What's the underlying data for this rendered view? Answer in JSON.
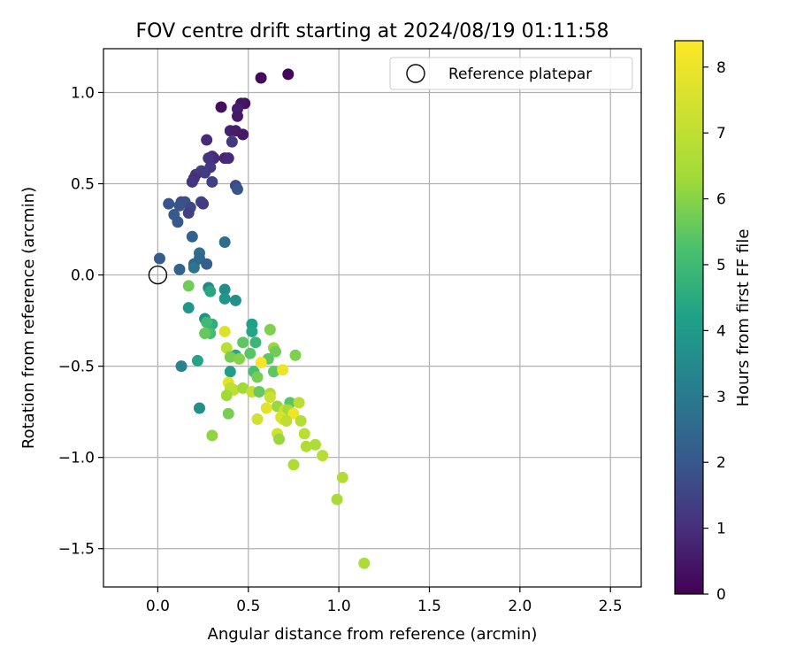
{
  "chart_data": {
    "type": "scatter",
    "title": "FOV centre drift starting at 2024/08/19 01:11:58",
    "xlabel": "Angular distance from reference (arcmin)",
    "ylabel": "Rotation from reference (arcmin)",
    "xlim": [
      -0.3,
      2.67
    ],
    "ylim": [
      -1.71,
      1.24
    ],
    "xticks": [
      0.0,
      0.5,
      1.0,
      1.5,
      2.0,
      2.5
    ],
    "xtick_labels": [
      "0.0",
      "0.5",
      "1.0",
      "1.5",
      "2.0",
      "2.5"
    ],
    "yticks": [
      -1.5,
      -1.0,
      -0.5,
      0.0,
      0.5,
      1.0
    ],
    "ytick_labels": [
      "−1.5",
      "−1.0",
      "−0.5",
      "0.0",
      "0.5",
      "1.0"
    ],
    "grid": true,
    "legend": {
      "position": "top-right",
      "entries": [
        "Reference platepar"
      ]
    },
    "colormap": "viridis",
    "colorbar": {
      "label": "Hours from first FF file",
      "range": [
        0,
        8.4
      ],
      "ticks": [
        0,
        1,
        2,
        3,
        4,
        5,
        6,
        7,
        8
      ],
      "tick_labels": [
        "0",
        "1",
        "2",
        "3",
        "4",
        "5",
        "6",
        "7",
        "8"
      ]
    },
    "reference_point": {
      "x": 0.0,
      "y": 0.0,
      "label": "Reference platepar"
    },
    "points": [
      {
        "x": 0.72,
        "y": 1.1,
        "c": 0.1
      },
      {
        "x": 0.57,
        "y": 1.08,
        "c": 0.2
      },
      {
        "x": 0.48,
        "y": 0.94,
        "c": 0.3
      },
      {
        "x": 0.46,
        "y": 0.94,
        "c": 0.4
      },
      {
        "x": 0.35,
        "y": 0.92,
        "c": 0.3
      },
      {
        "x": 0.44,
        "y": 0.91,
        "c": 0.6
      },
      {
        "x": 0.44,
        "y": 0.87,
        "c": 0.5
      },
      {
        "x": 0.4,
        "y": 0.79,
        "c": 0.7
      },
      {
        "x": 0.43,
        "y": 0.79,
        "c": 0.6
      },
      {
        "x": 0.47,
        "y": 0.77,
        "c": 0.5
      },
      {
        "x": 0.27,
        "y": 0.74,
        "c": 0.9
      },
      {
        "x": 0.41,
        "y": 0.73,
        "c": 1.2
      },
      {
        "x": 0.3,
        "y": 0.65,
        "c": 1.0
      },
      {
        "x": 0.31,
        "y": 0.64,
        "c": 0.9
      },
      {
        "x": 0.28,
        "y": 0.64,
        "c": 1.1
      },
      {
        "x": 0.37,
        "y": 0.64,
        "c": 0.8
      },
      {
        "x": 0.39,
        "y": 0.64,
        "c": 0.9
      },
      {
        "x": 0.29,
        "y": 0.59,
        "c": 1.2
      },
      {
        "x": 0.24,
        "y": 0.57,
        "c": 1.4
      },
      {
        "x": 0.26,
        "y": 0.56,
        "c": 1.3
      },
      {
        "x": 0.21,
        "y": 0.55,
        "c": 1.2
      },
      {
        "x": 0.2,
        "y": 0.53,
        "c": 1.0
      },
      {
        "x": 0.19,
        "y": 0.51,
        "c": 1.1
      },
      {
        "x": 0.3,
        "y": 0.51,
        "c": 1.4
      },
      {
        "x": 0.43,
        "y": 0.49,
        "c": 1.6
      },
      {
        "x": 0.44,
        "y": 0.47,
        "c": 1.9
      },
      {
        "x": 0.06,
        "y": 0.39,
        "c": 1.9
      },
      {
        "x": 0.13,
        "y": 0.4,
        "c": 1.7
      },
      {
        "x": 0.15,
        "y": 0.4,
        "c": 1.8
      },
      {
        "x": 0.12,
        "y": 0.38,
        "c": 1.9
      },
      {
        "x": 0.24,
        "y": 0.4,
        "c": 1.5
      },
      {
        "x": 0.25,
        "y": 0.39,
        "c": 1.3
      },
      {
        "x": 0.18,
        "y": 0.37,
        "c": 1.6
      },
      {
        "x": 0.17,
        "y": 0.34,
        "c": 1.4
      },
      {
        "x": 0.09,
        "y": 0.33,
        "c": 2.1
      },
      {
        "x": 0.11,
        "y": 0.29,
        "c": 2.0
      },
      {
        "x": 0.19,
        "y": 0.21,
        "c": 2.3
      },
      {
        "x": 0.37,
        "y": 0.18,
        "c": 2.6
      },
      {
        "x": 0.23,
        "y": 0.12,
        "c": 2.7
      },
      {
        "x": 0.23,
        "y": 0.09,
        "c": 2.5
      },
      {
        "x": 0.01,
        "y": 0.09,
        "c": 2.1
      },
      {
        "x": 0.2,
        "y": 0.06,
        "c": 2.4
      },
      {
        "x": 0.27,
        "y": 0.06,
        "c": 2.2
      },
      {
        "x": 0.2,
        "y": 0.04,
        "c": 2.8
      },
      {
        "x": 0.12,
        "y": 0.03,
        "c": 2.3
      },
      {
        "x": 0.28,
        "y": -0.07,
        "c": 3.4
      },
      {
        "x": 0.29,
        "y": -0.09,
        "c": 4.4
      },
      {
        "x": 0.17,
        "y": -0.06,
        "c": 5.7
      },
      {
        "x": 0.37,
        "y": -0.08,
        "c": 3.6
      },
      {
        "x": 0.37,
        "y": -0.13,
        "c": 3.8
      },
      {
        "x": 0.43,
        "y": -0.14,
        "c": 3.7
      },
      {
        "x": 0.17,
        "y": -0.18,
        "c": 3.9
      },
      {
        "x": 0.26,
        "y": -0.24,
        "c": 3.7
      },
      {
        "x": 0.3,
        "y": -0.27,
        "c": 4.6
      },
      {
        "x": 0.27,
        "y": -0.26,
        "c": 5.0
      },
      {
        "x": 0.52,
        "y": -0.27,
        "c": 4.2
      },
      {
        "x": 0.62,
        "y": -0.3,
        "c": 5.9
      },
      {
        "x": 0.37,
        "y": -0.31,
        "c": 7.6
      },
      {
        "x": 0.29,
        "y": -0.32,
        "c": 5.1
      },
      {
        "x": 0.26,
        "y": -0.32,
        "c": 5.6
      },
      {
        "x": 0.52,
        "y": -0.31,
        "c": 4.3
      },
      {
        "x": 0.54,
        "y": -0.37,
        "c": 4.9
      },
      {
        "x": 0.47,
        "y": -0.37,
        "c": 5.5
      },
      {
        "x": 0.38,
        "y": -0.4,
        "c": 6.9
      },
      {
        "x": 0.64,
        "y": -0.4,
        "c": 6.2
      },
      {
        "x": 0.43,
        "y": -0.44,
        "c": 4.4
      },
      {
        "x": 0.51,
        "y": -0.43,
        "c": 5.4
      },
      {
        "x": 0.65,
        "y": -0.42,
        "c": 5.7
      },
      {
        "x": 0.4,
        "y": -0.45,
        "c": 5.8
      },
      {
        "x": 0.45,
        "y": -0.46,
        "c": 6.0
      },
      {
        "x": 0.61,
        "y": -0.46,
        "c": 5.5
      },
      {
        "x": 0.76,
        "y": -0.44,
        "c": 5.9
      },
      {
        "x": 0.57,
        "y": -0.48,
        "c": 8.3
      },
      {
        "x": 0.22,
        "y": -0.47,
        "c": 4.3
      },
      {
        "x": 0.13,
        "y": -0.5,
        "c": 3.3
      },
      {
        "x": 0.4,
        "y": -0.53,
        "c": 4.1
      },
      {
        "x": 0.53,
        "y": -0.53,
        "c": 5.2
      },
      {
        "x": 0.55,
        "y": -0.56,
        "c": 5.8
      },
      {
        "x": 0.64,
        "y": -0.53,
        "c": 5.5
      },
      {
        "x": 0.69,
        "y": -0.52,
        "c": 8.0
      },
      {
        "x": 0.39,
        "y": -0.59,
        "c": 7.7
      },
      {
        "x": 0.4,
        "y": -0.62,
        "c": 7.0
      },
      {
        "x": 0.42,
        "y": -0.63,
        "c": 7.0
      },
      {
        "x": 0.47,
        "y": -0.62,
        "c": 6.3
      },
      {
        "x": 0.52,
        "y": -0.64,
        "c": 7.1
      },
      {
        "x": 0.56,
        "y": -0.64,
        "c": 5.6
      },
      {
        "x": 0.38,
        "y": -0.66,
        "c": 6.3
      },
      {
        "x": 0.62,
        "y": -0.65,
        "c": 6.6
      },
      {
        "x": 0.62,
        "y": -0.67,
        "c": 7.3
      },
      {
        "x": 0.73,
        "y": -0.7,
        "c": 5.4
      },
      {
        "x": 0.78,
        "y": -0.7,
        "c": 6.9
      },
      {
        "x": 0.66,
        "y": -0.72,
        "c": 6.2
      },
      {
        "x": 0.6,
        "y": -0.73,
        "c": 7.8
      },
      {
        "x": 0.7,
        "y": -0.74,
        "c": 7.2
      },
      {
        "x": 0.72,
        "y": -0.74,
        "c": 6.4
      },
      {
        "x": 0.75,
        "y": -0.76,
        "c": 8.1
      },
      {
        "x": 0.39,
        "y": -0.76,
        "c": 5.8
      },
      {
        "x": 0.55,
        "y": -0.79,
        "c": 7.4
      },
      {
        "x": 0.69,
        "y": -0.79,
        "c": 7.7
      },
      {
        "x": 0.68,
        "y": -0.78,
        "c": 7.6
      },
      {
        "x": 0.71,
        "y": -0.8,
        "c": 7.0
      },
      {
        "x": 0.79,
        "y": -0.8,
        "c": 6.8
      },
      {
        "x": 0.23,
        "y": -0.73,
        "c": 3.6
      },
      {
        "x": 0.66,
        "y": -0.87,
        "c": 7.4
      },
      {
        "x": 0.81,
        "y": -0.87,
        "c": 6.9
      },
      {
        "x": 0.3,
        "y": -0.88,
        "c": 6.1
      },
      {
        "x": 0.67,
        "y": -0.9,
        "c": 6.2
      },
      {
        "x": 0.82,
        "y": -0.94,
        "c": 6.7
      },
      {
        "x": 0.87,
        "y": -0.93,
        "c": 6.6
      },
      {
        "x": 0.91,
        "y": -0.99,
        "c": 6.8
      },
      {
        "x": 0.75,
        "y": -1.04,
        "c": 6.6
      },
      {
        "x": 1.02,
        "y": -1.11,
        "c": 6.7
      },
      {
        "x": 0.99,
        "y": -1.23,
        "c": 6.5
      },
      {
        "x": 1.14,
        "y": -1.58,
        "c": 6.6
      }
    ]
  }
}
